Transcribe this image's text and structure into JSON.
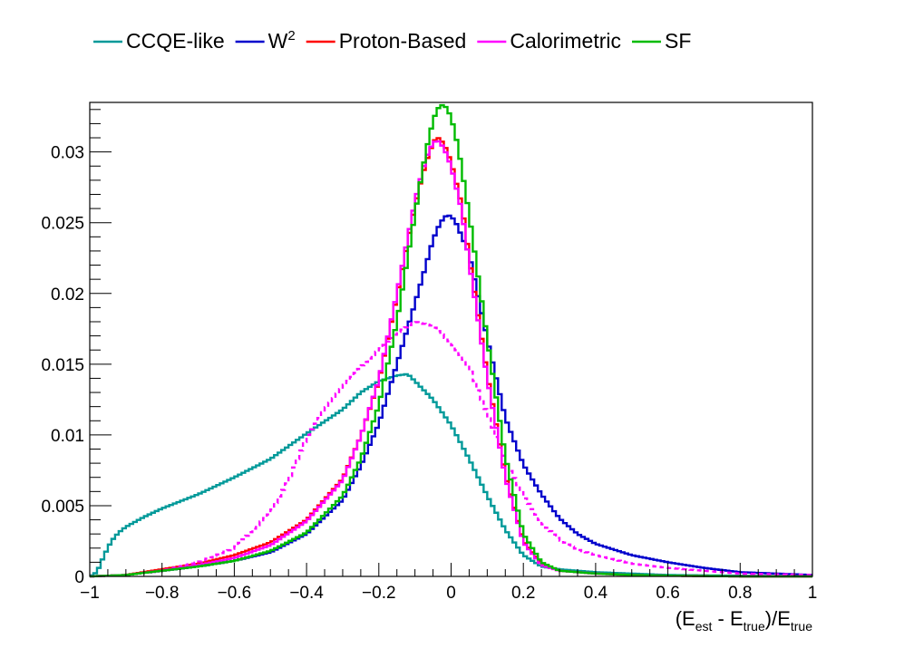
{
  "chart_data": {
    "type": "line",
    "title": "",
    "xlabel": {
      "prefix": "(E",
      "sub1": "est",
      "mid": " - E",
      "sub2": "true",
      "close": ")/E",
      "sub3": "true"
    },
    "ylabel": "",
    "xlim": [
      -1,
      1
    ],
    "ylim": [
      0,
      0.0335
    ],
    "x_ticks": [
      -1,
      -0.8,
      -0.6,
      -0.4,
      -0.2,
      0,
      0.2,
      0.4,
      0.6,
      0.8,
      1
    ],
    "x_tick_labels": [
      "−1",
      "−0.8",
      "−0.6",
      "−0.4",
      "−0.2",
      "0",
      "0.2",
      "0.4",
      "0.6",
      "0.8",
      "1"
    ],
    "y_ticks": [
      0,
      0.005,
      0.01,
      0.015,
      0.02,
      0.025,
      0.03
    ],
    "y_tick_labels": [
      "0",
      "0.005",
      "0.01",
      "0.015",
      "0.02",
      "0.025",
      "0.03"
    ],
    "legend_position": "top",
    "series": [
      {
        "name": "CCQE-like",
        "sup": "",
        "color": "#009999",
        "dashed": false,
        "x": [
          -1,
          -0.98,
          -0.96,
          -0.94,
          -0.92,
          -0.9,
          -0.85,
          -0.8,
          -0.7,
          -0.6,
          -0.5,
          -0.4,
          -0.3,
          -0.25,
          -0.2,
          -0.15,
          -0.12,
          -0.1,
          -0.05,
          0,
          0.05,
          0.1,
          0.15,
          0.2,
          0.25,
          0.3,
          0.4,
          0.5,
          0.6,
          0.8,
          1
        ],
        "y": [
          0,
          0.0003,
          0.0015,
          0.0025,
          0.0031,
          0.0035,
          0.0042,
          0.0048,
          0.0058,
          0.007,
          0.0083,
          0.0101,
          0.0118,
          0.013,
          0.0138,
          0.0142,
          0.0143,
          0.0138,
          0.0125,
          0.0107,
          0.0083,
          0.0057,
          0.0033,
          0.0015,
          0.0007,
          0.0005,
          0.0003,
          0.0002,
          0.0001,
          5e-05,
          0
        ]
      },
      {
        "name": "W",
        "sup": "2",
        "color": "#0000cc",
        "dashed": false,
        "x": [
          -1,
          -0.9,
          -0.8,
          -0.7,
          -0.6,
          -0.5,
          -0.4,
          -0.3,
          -0.25,
          -0.2,
          -0.15,
          -0.1,
          -0.075,
          -0.05,
          -0.03,
          -0.01,
          0.01,
          0.05,
          0.1,
          0.15,
          0.2,
          0.25,
          0.3,
          0.35,
          0.4,
          0.5,
          0.6,
          0.7,
          0.8,
          1
        ],
        "y": [
          0,
          0.0001,
          0.0004,
          0.0007,
          0.0011,
          0.0017,
          0.003,
          0.0054,
          0.0078,
          0.0108,
          0.015,
          0.0193,
          0.0215,
          0.0238,
          0.025,
          0.0256,
          0.0252,
          0.0228,
          0.0168,
          0.0112,
          0.0079,
          0.0058,
          0.0041,
          0.003,
          0.0023,
          0.0015,
          0.001,
          0.0006,
          0.0003,
          0.0001
        ]
      },
      {
        "name": "Proton-Based",
        "sup": "",
        "color": "#ff0000",
        "dashed": false,
        "x": [
          -1,
          -0.9,
          -0.8,
          -0.7,
          -0.6,
          -0.5,
          -0.4,
          -0.3,
          -0.25,
          -0.2,
          -0.15,
          -0.1,
          -0.08,
          -0.06,
          -0.04,
          -0.02,
          0,
          0.03,
          0.05,
          0.1,
          0.15,
          0.2,
          0.25,
          0.3,
          0.4,
          0.5,
          0.6,
          0.8,
          1
        ],
        "y": [
          0,
          0.0001,
          0.0005,
          0.0009,
          0.0015,
          0.0024,
          0.004,
          0.0069,
          0.0099,
          0.0138,
          0.0198,
          0.0262,
          0.0283,
          0.03,
          0.0311,
          0.0306,
          0.0293,
          0.0262,
          0.0226,
          0.0143,
          0.0072,
          0.0025,
          0.0009,
          0.0004,
          0.0002,
          0.0001,
          5e-05,
          0,
          0
        ]
      },
      {
        "name": "Calorimetric",
        "sup": "",
        "color": "#ff00ff",
        "dashed": false,
        "x": [
          -1,
          -0.9,
          -0.8,
          -0.7,
          -0.6,
          -0.5,
          -0.4,
          -0.3,
          -0.25,
          -0.2,
          -0.15,
          -0.1,
          -0.08,
          -0.06,
          -0.04,
          -0.02,
          0,
          0.03,
          0.05,
          0.1,
          0.15,
          0.2,
          0.25,
          0.3,
          0.4,
          0.5,
          0.6,
          0.8,
          1
        ],
        "y": [
          0,
          0.0001,
          0.0004,
          0.0008,
          0.0013,
          0.0022,
          0.0039,
          0.0068,
          0.0099,
          0.0139,
          0.02,
          0.0265,
          0.0286,
          0.0302,
          0.0309,
          0.0303,
          0.029,
          0.0258,
          0.0222,
          0.014,
          0.007,
          0.0024,
          0.0008,
          0.0004,
          0.0002,
          0.0001,
          5e-05,
          0,
          0
        ]
      },
      {
        "name": "Calorimetric (dashed)",
        "legend": false,
        "color": "#ff00ff",
        "dashed": true,
        "x": [
          -1,
          -0.9,
          -0.8,
          -0.7,
          -0.6,
          -0.5,
          -0.45,
          -0.4,
          -0.35,
          -0.3,
          -0.25,
          -0.2,
          -0.15,
          -0.1,
          -0.05,
          0,
          0.05,
          0.1,
          0.15,
          0.2,
          0.25,
          0.3,
          0.35,
          0.4,
          0.5,
          0.6,
          0.7,
          0.8,
          1
        ],
        "y": [
          0,
          0.0001,
          0.0004,
          0.001,
          0.002,
          0.0045,
          0.0068,
          0.0098,
          0.0118,
          0.0134,
          0.0148,
          0.016,
          0.0172,
          0.018,
          0.0177,
          0.0165,
          0.0148,
          0.0115,
          0.0082,
          0.0057,
          0.0038,
          0.0026,
          0.0019,
          0.0015,
          0.0009,
          0.0006,
          0.0004,
          0.0002,
          0.0001
        ]
      },
      {
        "name": "SF",
        "sup": "",
        "color": "#00bb00",
        "dashed": false,
        "x": [
          -1,
          -0.9,
          -0.8,
          -0.7,
          -0.6,
          -0.5,
          -0.4,
          -0.3,
          -0.25,
          -0.2,
          -0.15,
          -0.1,
          -0.08,
          -0.06,
          -0.04,
          -0.02,
          0,
          0.02,
          0.05,
          0.1,
          0.15,
          0.2,
          0.25,
          0.3,
          0.4,
          0.5,
          0.6,
          0.8,
          1
        ],
        "y": [
          0,
          0.0001,
          0.0004,
          0.0007,
          0.0011,
          0.0018,
          0.0031,
          0.0057,
          0.0083,
          0.0121,
          0.018,
          0.0256,
          0.0286,
          0.0312,
          0.033,
          0.0334,
          0.0325,
          0.0303,
          0.0256,
          0.0168,
          0.0085,
          0.003,
          0.001,
          0.0004,
          0.0002,
          0.0001,
          5e-05,
          0,
          0
        ]
      }
    ]
  }
}
